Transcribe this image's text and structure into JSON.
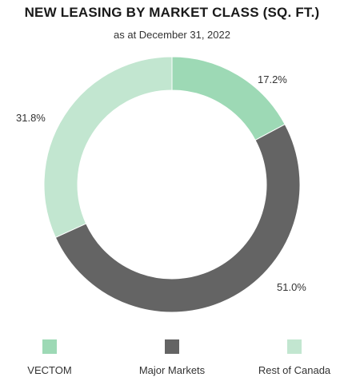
{
  "chart_data": {
    "type": "pie",
    "title": "NEW LEASING BY MARKET CLASS (SQ. FT.)",
    "subtitle": "as at December 31, 2022",
    "categories": [
      "VECTOM",
      "Major Markets",
      "Rest of Canada"
    ],
    "values": [
      17.2,
      51.0,
      31.8
    ],
    "value_labels": [
      "17.2%",
      "51.0%",
      "31.8%"
    ],
    "colors": [
      "#9dd9b5",
      "#646464",
      "#c2e6d0"
    ],
    "legend_position": "bottom",
    "donut": true
  }
}
